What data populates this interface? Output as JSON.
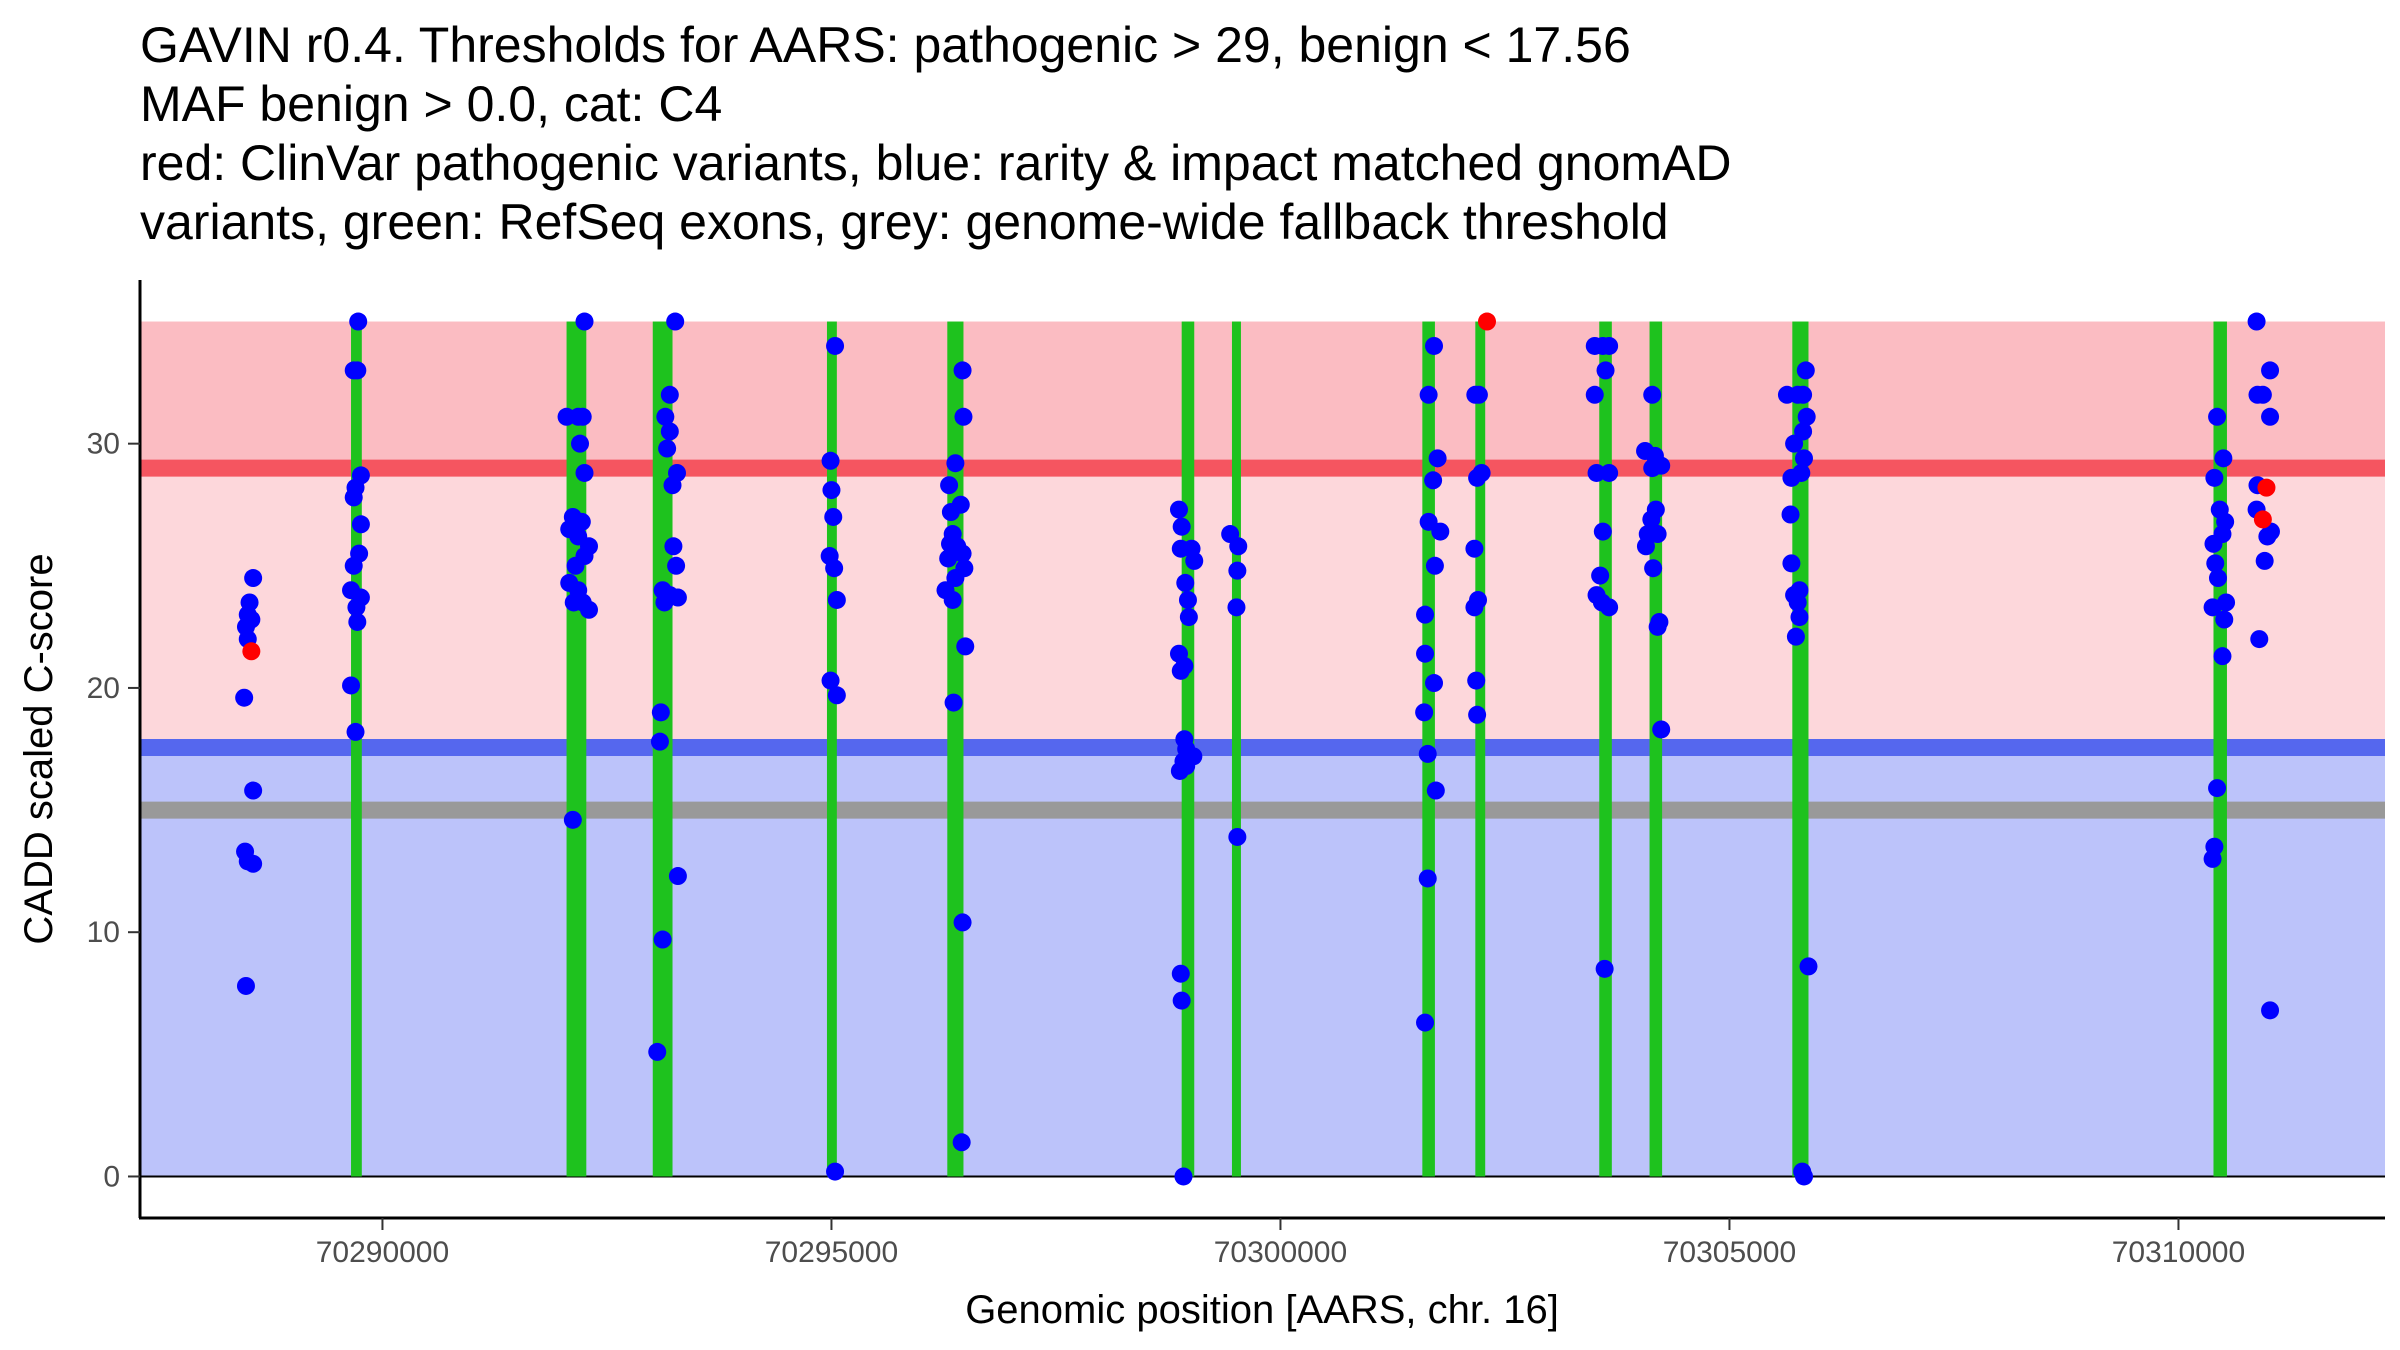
{
  "chart_data": {
    "type": "scatter",
    "title_lines": [
      "GAVIN r0.4. Thresholds for AARS: pathogenic > 29, benign < 17.56",
      "MAF benign > 0.0, cat: C4",
      "red: ClinVar pathogenic variants, blue: rarity & impact matched gnomAD",
      "variants, green: RefSeq exons, grey: genome-wide fallback threshold"
    ],
    "xlabel": "Genomic position [AARS, chr. 16]",
    "ylabel": "CADD scaled C-score",
    "xlim": [
      70287300,
      70312300
    ],
    "ylim": [
      -1.7,
      36.7
    ],
    "x_ticks": [
      70290000,
      70295000,
      70300000,
      70305000,
      70310000
    ],
    "x_tick_labels": [
      "70290000",
      "70295000",
      "70300000",
      "70305000",
      "70310000"
    ],
    "y_ticks": [
      0,
      10,
      20,
      30
    ],
    "y_tick_labels": [
      "0",
      "10",
      "20",
      "30"
    ],
    "colors": {
      "pathogenic_band_upper": "#fbbcc2",
      "pathogenic_band_lower": "#fdd7db",
      "benign_band": "#bcc3fa",
      "pathogenic_line": "#f55560",
      "benign_line": "#5567ee",
      "fallback_line": "#999999",
      "exon": "#1ec21e",
      "gnomad_point": "#0000ff",
      "clinvar_point": "#ff0000"
    },
    "bands": [
      {
        "name": "pathogenic-upper-band",
        "ymin": 29,
        "ymax": 35,
        "color_key": "pathogenic_band_upper"
      },
      {
        "name": "pathogenic-lower-band",
        "ymin": 17.56,
        "ymax": 29,
        "color_key": "pathogenic_band_lower"
      },
      {
        "name": "benign-band",
        "ymin": 0,
        "ymax": 17.56,
        "color_key": "benign_band"
      }
    ],
    "thresholds": [
      {
        "name": "pathogenic-threshold",
        "value": 29,
        "color_key": "pathogenic_line"
      },
      {
        "name": "benign-threshold",
        "value": 17.56,
        "color_key": "benign_line"
      },
      {
        "name": "fallback-threshold",
        "value": 15.0,
        "color_key": "fallback_line"
      }
    ],
    "exons": [
      {
        "start": 70289650,
        "end": 70289770
      },
      {
        "start": 70292050,
        "end": 70292270
      },
      {
        "start": 70293010,
        "end": 70293230
      },
      {
        "start": 70294950,
        "end": 70295060
      },
      {
        "start": 70296290,
        "end": 70296470
      },
      {
        "start": 70298900,
        "end": 70299040
      },
      {
        "start": 70299460,
        "end": 70299560
      },
      {
        "start": 70301580,
        "end": 70301720
      },
      {
        "start": 70302170,
        "end": 70302280
      },
      {
        "start": 70303550,
        "end": 70303690
      },
      {
        "start": 70304110,
        "end": 70304250
      },
      {
        "start": 70305700,
        "end": 70305880
      },
      {
        "start": 70310390,
        "end": 70310540
      }
    ],
    "series": [
      {
        "name": "gnomAD variants",
        "color_key": "gnomad_point",
        "points": [
          [
            70288560,
            24.5
          ],
          [
            70288520,
            23.5
          ],
          [
            70288500,
            23.0
          ],
          [
            70288540,
            22.8
          ],
          [
            70288480,
            22.5
          ],
          [
            70288500,
            22.0
          ],
          [
            70288460,
            19.6
          ],
          [
            70288560,
            15.8
          ],
          [
            70288470,
            13.3
          ],
          [
            70288500,
            12.9
          ],
          [
            70288560,
            12.8
          ],
          [
            70288480,
            7.8
          ],
          [
            70289730,
            35.0
          ],
          [
            70289680,
            33.0
          ],
          [
            70289720,
            33.0
          ],
          [
            70289760,
            28.7
          ],
          [
            70289700,
            28.2
          ],
          [
            70289680,
            27.8
          ],
          [
            70289760,
            26.7
          ],
          [
            70289740,
            25.5
          ],
          [
            70289680,
            25.0
          ],
          [
            70289650,
            24.0
          ],
          [
            70289760,
            23.7
          ],
          [
            70289710,
            23.3
          ],
          [
            70289720,
            22.7
          ],
          [
            70289650,
            20.1
          ],
          [
            70289700,
            18.2
          ],
          [
            70292250,
            35.0
          ],
          [
            70292050,
            31.1
          ],
          [
            70292180,
            31.1
          ],
          [
            70292230,
            31.1
          ],
          [
            70292200,
            30.0
          ],
          [
            70292250,
            28.8
          ],
          [
            70292120,
            27.0
          ],
          [
            70292220,
            26.8
          ],
          [
            70292080,
            26.5
          ],
          [
            70292180,
            26.2
          ],
          [
            70292300,
            25.8
          ],
          [
            70292250,
            25.4
          ],
          [
            70292150,
            25.0
          ],
          [
            70292080,
            24.3
          ],
          [
            70292180,
            24.0
          ],
          [
            70292130,
            23.5
          ],
          [
            70292230,
            23.5
          ],
          [
            70292300,
            23.2
          ],
          [
            70292120,
            14.6
          ],
          [
            70293260,
            35.0
          ],
          [
            70293200,
            32.0
          ],
          [
            70293150,
            31.1
          ],
          [
            70293200,
            30.5
          ],
          [
            70293170,
            29.8
          ],
          [
            70293280,
            28.8
          ],
          [
            70293230,
            28.3
          ],
          [
            70293240,
            25.8
          ],
          [
            70293270,
            25.0
          ],
          [
            70293120,
            24.0
          ],
          [
            70293200,
            23.8
          ],
          [
            70293140,
            23.5
          ],
          [
            70293290,
            23.7
          ],
          [
            70293100,
            19.0
          ],
          [
            70293090,
            17.8
          ],
          [
            70293290,
            12.3
          ],
          [
            70293120,
            9.7
          ],
          [
            70293060,
            5.1
          ],
          [
            70295040,
            34.0
          ],
          [
            70294990,
            29.3
          ],
          [
            70295000,
            28.1
          ],
          [
            70295020,
            27.0
          ],
          [
            70294980,
            25.4
          ],
          [
            70295030,
            24.9
          ],
          [
            70295060,
            23.6
          ],
          [
            70294990,
            20.3
          ],
          [
            70295060,
            19.7
          ],
          [
            70295040,
            0.2
          ],
          [
            70296460,
            33.0
          ],
          [
            70296380,
            29.2
          ],
          [
            70296470,
            31.1
          ],
          [
            70296310,
            28.3
          ],
          [
            70296440,
            27.5
          ],
          [
            70296330,
            27.2
          ],
          [
            70296350,
            26.3
          ],
          [
            70296320,
            25.9
          ],
          [
            70296400,
            25.8
          ],
          [
            70296460,
            25.5
          ],
          [
            70296300,
            25.3
          ],
          [
            70296480,
            24.9
          ],
          [
            70296380,
            24.5
          ],
          [
            70296270,
            24.0
          ],
          [
            70296350,
            23.6
          ],
          [
            70296490,
            21.7
          ],
          [
            70296360,
            19.4
          ],
          [
            70296460,
            10.4
          ],
          [
            70296450,
            1.4
          ],
          [
            70298870,
            27.3
          ],
          [
            70298900,
            26.6
          ],
          [
            70298890,
            25.7
          ],
          [
            70299010,
            25.7
          ],
          [
            70299040,
            25.2
          ],
          [
            70298940,
            24.3
          ],
          [
            70298970,
            23.6
          ],
          [
            70298980,
            22.9
          ],
          [
            70298870,
            21.4
          ],
          [
            70298930,
            20.9
          ],
          [
            70298890,
            20.7
          ],
          [
            70298930,
            17.9
          ],
          [
            70298950,
            17.5
          ],
          [
            70299030,
            17.2
          ],
          [
            70298920,
            17.0
          ],
          [
            70298880,
            16.6
          ],
          [
            70298950,
            16.8
          ],
          [
            70298890,
            8.3
          ],
          [
            70298900,
            7.2
          ],
          [
            70298920,
            0.0
          ],
          [
            70299440,
            26.3
          ],
          [
            70299530,
            25.8
          ],
          [
            70299520,
            24.8
          ],
          [
            70299510,
            23.3
          ],
          [
            70299520,
            13.9
          ],
          [
            70301710,
            34.0
          ],
          [
            70301650,
            32.0
          ],
          [
            70301750,
            29.4
          ],
          [
            70301700,
            28.5
          ],
          [
            70301650,
            26.8
          ],
          [
            70301780,
            26.4
          ],
          [
            70301720,
            25.0
          ],
          [
            70301610,
            23.0
          ],
          [
            70301610,
            21.4
          ],
          [
            70301710,
            20.2
          ],
          [
            70301600,
            19.0
          ],
          [
            70301640,
            17.3
          ],
          [
            70301730,
            15.8
          ],
          [
            70301640,
            12.2
          ],
          [
            70301610,
            6.3
          ],
          [
            70302170,
            32.0
          ],
          [
            70302210,
            32.0
          ],
          [
            70302240,
            28.8
          ],
          [
            70302190,
            28.6
          ],
          [
            70302160,
            25.7
          ],
          [
            70302200,
            23.6
          ],
          [
            70302160,
            23.3
          ],
          [
            70302180,
            20.3
          ],
          [
            70302190,
            18.9
          ],
          [
            70303500,
            34.0
          ],
          [
            70303590,
            34.0
          ],
          [
            70303660,
            34.0
          ],
          [
            70303620,
            33.0
          ],
          [
            70303500,
            32.0
          ],
          [
            70303520,
            28.8
          ],
          [
            70303660,
            28.8
          ],
          [
            70303590,
            26.4
          ],
          [
            70303560,
            24.6
          ],
          [
            70303520,
            23.8
          ],
          [
            70303580,
            23.5
          ],
          [
            70303660,
            23.3
          ],
          [
            70303610,
            8.5
          ],
          [
            70304060,
            29.7
          ],
          [
            70304170,
            29.5
          ],
          [
            70304240,
            29.1
          ],
          [
            70304140,
            29.0
          ],
          [
            70304180,
            27.3
          ],
          [
            70304130,
            26.9
          ],
          [
            70304200,
            26.3
          ],
          [
            70304090,
            26.3
          ],
          [
            70304070,
            25.8
          ],
          [
            70304150,
            24.9
          ],
          [
            70304220,
            22.7
          ],
          [
            70304200,
            22.5
          ],
          [
            70304240,
            18.3
          ],
          [
            70304140,
            32.0
          ],
          [
            70305640,
            32.0
          ],
          [
            70305760,
            32.0
          ],
          [
            70305850,
            33.0
          ],
          [
            70305820,
            32.0
          ],
          [
            70305720,
            30.0
          ],
          [
            70305820,
            30.5
          ],
          [
            70305860,
            31.1
          ],
          [
            70305830,
            29.4
          ],
          [
            70305800,
            28.8
          ],
          [
            70305690,
            28.6
          ],
          [
            70305680,
            27.1
          ],
          [
            70305690,
            25.1
          ],
          [
            70305780,
            24.0
          ],
          [
            70305720,
            23.8
          ],
          [
            70305760,
            23.5
          ],
          [
            70305780,
            22.9
          ],
          [
            70305740,
            22.1
          ],
          [
            70305880,
            8.6
          ],
          [
            70305810,
            0.2
          ],
          [
            70305830,
            0.0
          ],
          [
            70310430,
            31.1
          ],
          [
            70310400,
            28.6
          ],
          [
            70310500,
            29.4
          ],
          [
            70310460,
            27.3
          ],
          [
            70310520,
            26.8
          ],
          [
            70310490,
            26.3
          ],
          [
            70310390,
            25.9
          ],
          [
            70310410,
            25.1
          ],
          [
            70310440,
            24.5
          ],
          [
            70310530,
            23.5
          ],
          [
            70310380,
            23.3
          ],
          [
            70310510,
            22.8
          ],
          [
            70310490,
            21.3
          ],
          [
            70310430,
            15.9
          ],
          [
            70310400,
            13.5
          ],
          [
            70310380,
            13.0
          ],
          [
            70310870,
            35.0
          ],
          [
            70311020,
            33.0
          ],
          [
            70310880,
            32.0
          ],
          [
            70310940,
            32.0
          ],
          [
            70311020,
            31.1
          ],
          [
            70310880,
            28.3
          ],
          [
            70310870,
            27.3
          ],
          [
            70311030,
            26.4
          ],
          [
            70310990,
            26.2
          ],
          [
            70310960,
            25.2
          ],
          [
            70310900,
            22.0
          ],
          [
            70311020,
            6.8
          ]
        ]
      },
      {
        "name": "ClinVar pathogenic variants",
        "color_key": "clinvar_point",
        "points": [
          [
            70288540,
            21.5
          ],
          [
            70302300,
            35.0
          ],
          [
            70310980,
            28.2
          ],
          [
            70310940,
            26.9
          ]
        ]
      }
    ]
  }
}
